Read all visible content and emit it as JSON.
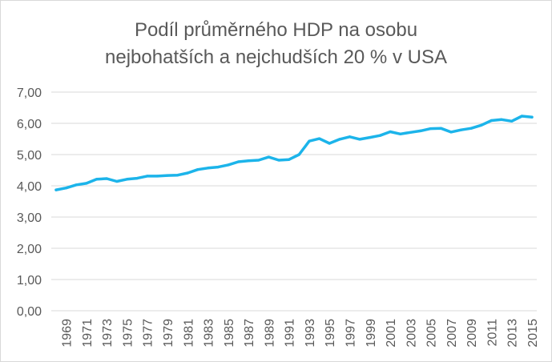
{
  "chart_data": {
    "type": "line",
    "title": "Podíl průměrného HDP na osobu",
    "subtitle": "nejbohatších a nejchudších 20 % v USA",
    "xlabel": "",
    "ylabel": "",
    "ylim": [
      0,
      7
    ],
    "yticks": [
      "0,00",
      "1,00",
      "2,00",
      "3,00",
      "4,00",
      "5,00",
      "6,00",
      "7,00"
    ],
    "xticks": [
      "1969",
      "1971",
      "1973",
      "1975",
      "1977",
      "1979",
      "1981",
      "1983",
      "1985",
      "1987",
      "1989",
      "1991",
      "1993",
      "1995",
      "1997",
      "1999",
      "2001",
      "2003",
      "2005",
      "2007",
      "2009",
      "2011",
      "2013",
      "2015"
    ],
    "grid": true,
    "legend": "none",
    "line_color": "#1cb4ea",
    "x": [
      1968,
      1969,
      1970,
      1971,
      1972,
      1973,
      1974,
      1975,
      1976,
      1977,
      1978,
      1979,
      1980,
      1981,
      1982,
      1983,
      1984,
      1985,
      1986,
      1987,
      1988,
      1989,
      1990,
      1991,
      1992,
      1993,
      1994,
      1995,
      1996,
      1997,
      1998,
      1999,
      2000,
      2001,
      2002,
      2003,
      2004,
      2005,
      2006,
      2007,
      2008,
      2009,
      2010,
      2011,
      2012,
      2013,
      2014,
      2015
    ],
    "series": [
      {
        "values": [
          3.87,
          3.93,
          4.03,
          4.08,
          4.21,
          4.23,
          4.14,
          4.21,
          4.24,
          4.31,
          4.31,
          4.33,
          4.34,
          4.41,
          4.52,
          4.57,
          4.6,
          4.67,
          4.77,
          4.8,
          4.82,
          4.92,
          4.82,
          4.84,
          5.0,
          5.43,
          5.51,
          5.36,
          5.49,
          5.57,
          5.49,
          5.55,
          5.61,
          5.73,
          5.66,
          5.71,
          5.76,
          5.83,
          5.84,
          5.72,
          5.79,
          5.84,
          5.94,
          6.09,
          6.12,
          6.07,
          6.23,
          6.2
        ]
      }
    ]
  }
}
